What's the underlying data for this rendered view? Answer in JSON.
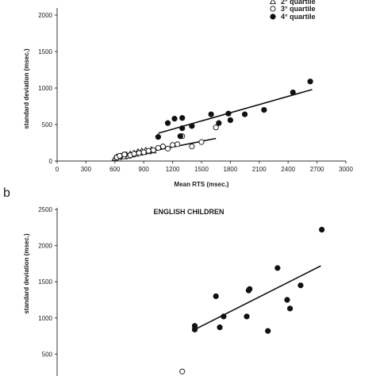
{
  "chart_data": [
    {
      "type": "scatter",
      "panel": "a",
      "title": "",
      "xlabel": "Mean RTS (msec.)",
      "ylabel": "standard deviation (msec.)",
      "xlim": [
        0,
        3000
      ],
      "ylim": [
        0,
        2000
      ],
      "xticks": [
        0,
        300,
        600,
        900,
        1200,
        1500,
        1800,
        2100,
        2400,
        2700,
        3000
      ],
      "yticks": [
        0,
        500,
        1000,
        1500,
        2000
      ],
      "grid": false,
      "legend": {
        "placement": "top-right",
        "entries": [
          {
            "label": "2° quartile",
            "marker": "triangle-open"
          },
          {
            "label": "3° quartile",
            "marker": "circle-open"
          },
          {
            "label": "4° quartile",
            "marker": "circle-filled"
          }
        ]
      },
      "series": [
        {
          "marker": "triangle-open",
          "points": [
            [
              600,
              40
            ],
            [
              620,
              60
            ],
            [
              640,
              50
            ],
            [
              660,
              70
            ],
            [
              680,
              80
            ],
            [
              700,
              60
            ],
            [
              720,
              90
            ],
            [
              740,
              70
            ],
            [
              760,
              100
            ],
            [
              780,
              85
            ],
            [
              800,
              110
            ],
            [
              820,
              95
            ],
            [
              840,
              130
            ],
            [
              860,
              110
            ],
            [
              880,
              140
            ],
            [
              900,
              120
            ],
            [
              920,
              150
            ],
            [
              950,
              130
            ],
            [
              980,
              160
            ],
            [
              1000,
              140
            ]
          ]
        },
        {
          "marker": "circle-open",
          "points": [
            [
              620,
              50
            ],
            [
              650,
              70
            ],
            [
              700,
              90
            ],
            [
              760,
              80
            ],
            [
              800,
              100
            ],
            [
              850,
              110
            ],
            [
              900,
              120
            ],
            [
              950,
              140
            ],
            [
              1000,
              150
            ],
            [
              1050,
              180
            ],
            [
              1100,
              200
            ],
            [
              1150,
              170
            ],
            [
              1200,
              220
            ],
            [
              1250,
              230
            ],
            [
              1300,
              340
            ],
            [
              1400,
              200
            ],
            [
              1500,
              260
            ],
            [
              1650,
              460
            ]
          ]
        },
        {
          "marker": "circle-filled",
          "points": [
            [
              1050,
              330
            ],
            [
              1150,
              520
            ],
            [
              1220,
              580
            ],
            [
              1280,
              340
            ],
            [
              1300,
              450
            ],
            [
              1300,
              590
            ],
            [
              1400,
              480
            ],
            [
              1600,
              640
            ],
            [
              1680,
              520
            ],
            [
              1780,
              650
            ],
            [
              1800,
              560
            ],
            [
              1950,
              640
            ],
            [
              2150,
              700
            ],
            [
              2450,
              940
            ],
            [
              2630,
              1090
            ]
          ]
        }
      ],
      "trendlines": [
        {
          "marker": "triangle-open",
          "from": [
            600,
            40
          ],
          "to": [
            1000,
            150
          ]
        },
        {
          "marker": "circle-open",
          "from": [
            1000,
            140
          ],
          "to": [
            1650,
            310
          ]
        },
        {
          "marker": "circle-filled",
          "from": [
            1050,
            380
          ],
          "to": [
            2650,
            980
          ]
        }
      ]
    },
    {
      "type": "scatter",
      "panel": "b",
      "title": "ENGLISH CHILDREN",
      "ylabel": "standard deviation (msec.)",
      "xlim": [
        0,
        3000
      ],
      "ylim": [
        0,
        2500
      ],
      "yticks": [
        500,
        1000,
        1500,
        2000,
        2500
      ],
      "grid": false,
      "series": [
        {
          "marker": "triangle-open",
          "points": [
            [
              900,
              60
            ],
            [
              950,
              90
            ],
            [
              1000,
              80
            ],
            [
              1050,
              110
            ]
          ]
        },
        {
          "marker": "circle-open",
          "points": [
            [
              1050,
              120
            ],
            [
              1100,
              150
            ],
            [
              1150,
              160
            ],
            [
              1200,
              190
            ],
            [
              1250,
              200
            ],
            [
              1300,
              260
            ]
          ]
        },
        {
          "marker": "circle-filled",
          "points": [
            [
              950,
              60
            ],
            [
              1000,
              120
            ],
            [
              1020,
              80
            ],
            [
              1050,
              140
            ],
            [
              1080,
              110
            ],
            [
              1120,
              170
            ],
            [
              1150,
              180
            ],
            [
              1430,
              890
            ],
            [
              1430,
              840
            ],
            [
              1650,
              1300
            ],
            [
              1690,
              870
            ],
            [
              1730,
              1020
            ],
            [
              1970,
              1020
            ],
            [
              1990,
              1380
            ],
            [
              2000,
              1400
            ],
            [
              2190,
              820
            ],
            [
              2290,
              1690
            ],
            [
              2390,
              1250
            ],
            [
              2420,
              1130
            ],
            [
              2530,
              1450
            ],
            [
              2750,
              2220
            ]
          ]
        }
      ],
      "trendlines": [
        {
          "marker": "circle-filled",
          "from": [
            1430,
            840
          ],
          "to": [
            2740,
            1720
          ]
        }
      ]
    }
  ],
  "panel_a": {
    "legend_partial_label": "2° quartile"
  },
  "panel_b": {
    "letter": "b"
  }
}
